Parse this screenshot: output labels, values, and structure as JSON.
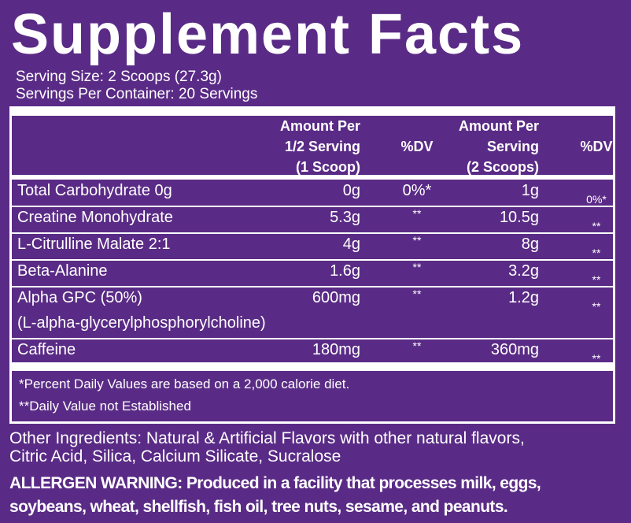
{
  "header": {
    "title": "Supplement Facts",
    "serving_size": "Serving Size: 2 Scoops (27.3g)",
    "servings_per_container": "Servings Per Container: 20 Servings"
  },
  "table": {
    "columns": [
      [
        "Amount Per",
        "1/2 Serving",
        "(1 Scoop)"
      ],
      [
        "%DV"
      ],
      [
        "Amount Per",
        "Serving",
        "(2 Scoops)"
      ],
      [
        "%DV"
      ]
    ],
    "rows": [
      {
        "name": "Total Carbohydrate 0g",
        "amount_half": "0g",
        "dv_half": "0%*",
        "amount_full": "1g",
        "dv_full": "0%*"
      },
      {
        "name": "Creatine Monohydrate",
        "amount_half": "5.3g",
        "dv_half": "**",
        "amount_full": "10.5g",
        "dv_full": "**"
      },
      {
        "name": "L-Citrulline Malate 2:1",
        "amount_half": "4g",
        "dv_half": "**",
        "amount_full": "8g",
        "dv_full": "**"
      },
      {
        "name": "Beta-Alanine",
        "amount_half": "1.6g",
        "dv_half": "**",
        "amount_full": "3.2g",
        "dv_full": "**"
      },
      {
        "name": "Alpha GPC (50%)",
        "detail": "(L-alpha-glycerylphosphorylcholine)",
        "amount_half": "600mg",
        "dv_half": "**",
        "amount_full": "1.2g",
        "dv_full": "**"
      },
      {
        "name": "Caffeine",
        "amount_half": "180mg",
        "dv_half": "**",
        "amount_full": "360mg",
        "dv_full": "**"
      }
    ],
    "footnotes": [
      "*Percent Daily Values are based on a 2,000 calorie diet.",
      "**Daily Value not Established"
    ]
  },
  "other_ingredients": [
    "Other Ingredients: Natural & Artificial Flavors with other natural flavors,",
    "Citric Acid, Silica, Calcium Silicate, Sucralose"
  ],
  "allergen": {
    "label": "ALLERGEN WARNING:",
    "text": "Produced in a facility that processes milk, eggs,",
    "text_line2": "soybeans, wheat, shellfish, fish oil, tree nuts, sesame, and peanuts."
  }
}
